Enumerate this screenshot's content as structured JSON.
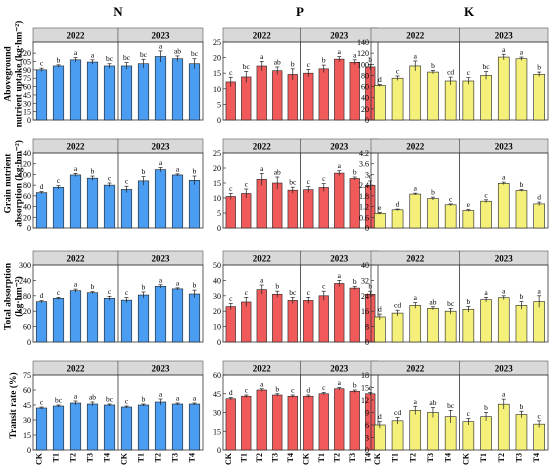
{
  "colors": {
    "N": "#4a9df0",
    "P": "#f05a5a",
    "K": "#f5f07a",
    "strip": "#d9d9d9"
  },
  "chart_data": {
    "type": "bar",
    "nutrients": [
      "N",
      "P",
      "K"
    ],
    "years": [
      "2022",
      "2023"
    ],
    "treatments": [
      "CK",
      "T1",
      "T2",
      "T3",
      "T4"
    ],
    "rows": [
      {
        "key": "aboveground",
        "ylabel": [
          "Aboveground",
          "nutrient uptake (kg·hm⁻²)"
        ],
        "panels": {
          "N": {
            "ylim": [
              0,
              140
            ],
            "ticks": [
              0,
              15,
              30,
              45,
              60,
              75,
              90,
              105,
              120
            ],
            "values": [
              [
                90,
                97,
                108,
                104,
                97
              ],
              [
                97,
                101,
                114,
                110,
                101
              ]
            ],
            "errors": [
              [
                3,
                2,
                4,
                4,
                4
              ],
              [
                6,
                8,
                10,
                5,
                9
              ]
            ],
            "letters": [
              [
                "c",
                "b",
                "a",
                "a",
                "bc"
              ],
              [
                "bc",
                "bc",
                "a",
                "ab",
                "bc"
              ]
            ]
          },
          "P": {
            "ylim": [
              0,
              25
            ],
            "ticks": [
              0,
              5,
              10,
              15,
              20,
              25
            ],
            "values": [
              [
                12.2,
                13.8,
                17.3,
                15.8,
                14.6
              ],
              [
                15.0,
                16.4,
                19.5,
                18.5,
                17.0
              ]
            ],
            "errors": [
              [
                1.5,
                1.8,
                1.5,
                1.2,
                1.8
              ],
              [
                1.2,
                1.2,
                0.8,
                0.8,
                0.8
              ]
            ],
            "letters": [
              [
                "c",
                "bc",
                "a",
                "ab",
                "b"
              ],
              [
                "c",
                "b",
                "a",
                "a",
                "b"
              ]
            ]
          },
          "K": {
            "ylim": [
              0,
              140
            ],
            "ticks": [
              0,
              20,
              40,
              60,
              80,
              100,
              120,
              140
            ],
            "values": [
              [
                62,
                75,
                97,
                86,
                70
              ],
              [
                70,
                80,
                113,
                110,
                82
              ]
            ],
            "errors": [
              [
                2,
                4,
                9,
                3,
                7
              ],
              [
                6,
                7,
                5,
                3,
                4
              ]
            ],
            "letters": [
              [
                "d",
                "c",
                "a",
                "b",
                "cd"
              ],
              [
                "c",
                "bc",
                "a",
                "a",
                "b"
              ]
            ]
          }
        }
      },
      {
        "key": "grain",
        "ylabel": [
          "Grain nutrient",
          "absorption (kg·hm⁻²)"
        ],
        "panels": {
          "N": {
            "ylim": [
              0,
              140
            ],
            "ticks": [
              0,
              20,
              40,
              60,
              80,
              100,
              120,
              140
            ],
            "values": [
              [
                66,
                76,
                99,
                93,
                80
              ],
              [
                72,
                88,
                109,
                99,
                89
              ]
            ],
            "errors": [
              [
                2,
                3,
                3,
                4,
                4
              ],
              [
                6,
                8,
                4,
                2,
                8
              ]
            ],
            "letters": [
              [
                "d",
                "c",
                "a",
                "b",
                "c"
              ],
              [
                "c",
                "b",
                "a",
                "a",
                "b"
              ]
            ]
          },
          "P": {
            "ylim": [
              0,
              25
            ],
            "ticks": [
              0,
              5,
              10,
              15,
              20,
              25
            ],
            "values": [
              [
                10.5,
                11.5,
                16.2,
                15.0,
                12.6
              ],
              [
                12.8,
                13.5,
                18.3,
                16.5,
                14.2
              ]
            ],
            "errors": [
              [
                1.0,
                1.5,
                2.0,
                2.0,
                1.0
              ],
              [
                1.0,
                1.3,
                0.8,
                0.5,
                1.5
              ]
            ],
            "letters": [
              [
                "c",
                "c",
                "a",
                "ab",
                "bc"
              ],
              [
                "c",
                "c",
                "a",
                "b",
                "c"
              ]
            ]
          },
          "K": {
            "ylim": [
              0,
              4.2
            ],
            "ticks": [
              0,
              0.6,
              1.2,
              1.8,
              2.4,
              3.0,
              3.6,
              4.2
            ],
            "values": [
              [
                0.82,
                1.02,
                1.9,
                1.65,
                1.3
              ],
              [
                0.98,
                1.5,
                2.5,
                2.1,
                1.35
              ]
            ],
            "errors": [
              [
                0.05,
                0.04,
                0.05,
                0.08,
                0.05
              ],
              [
                0.05,
                0.08,
                0.07,
                0.05,
                0.1
              ]
            ],
            "letters": [
              [
                "e",
                "d",
                "a",
                "b",
                "c"
              ],
              [
                "e",
                "c",
                "a",
                "b",
                "d"
              ]
            ]
          }
        }
      },
      {
        "key": "total",
        "ylabel": [
          "Total absorption",
          "(kg·hm⁻²)"
        ],
        "panels": {
          "N": {
            "ylim": [
              0,
              300
            ],
            "ticks": [
              0,
              60,
              120,
              180,
              240,
              300
            ],
            "values": [
              [
                157,
                170,
                200,
                192,
                170
              ],
              [
                163,
                183,
                217,
                207,
                187
              ]
            ],
            "errors": [
              [
                4,
                4,
                6,
                4,
                8
              ],
              [
                10,
                12,
                6,
                4,
                15
              ]
            ],
            "letters": [
              [
                "d",
                "c",
                "a",
                "b",
                "c"
              ],
              [
                "c",
                "b",
                "a",
                "a",
                "b"
              ]
            ]
          },
          "P": {
            "ylim": [
              0,
              50
            ],
            "ticks": [
              0,
              10,
              20,
              30,
              40,
              50
            ],
            "values": [
              [
                23,
                26,
                34,
                31,
                27
              ],
              [
                27,
                30,
                38,
                35,
                31
              ]
            ],
            "errors": [
              [
                2,
                3,
                3,
                2,
                2
              ],
              [
                2,
                3,
                2,
                1,
                2
              ]
            ],
            "letters": [
              [
                "c",
                "c",
                "a",
                "b",
                "bc"
              ],
              [
                "c",
                "c",
                "a",
                "b",
                "b"
              ]
            ]
          },
          "K": {
            "ylim": [
              0,
              40
            ],
            "ticks": [
              0,
              8,
              16,
              24,
              32,
              40
            ],
            "values": [
              [
                13,
                15,
                19,
                17.5,
                16
              ],
              [
                17,
                22,
                23,
                19,
                21
              ]
            ],
            "errors": [
              [
                1.5,
                1.5,
                1.5,
                0.8,
                1.5
              ],
              [
                1.5,
                1.2,
                1.0,
                2.0,
                3.0
              ]
            ],
            "letters": [
              [
                "d",
                "cd",
                "a",
                "ab",
                "bc"
              ],
              [
                "b",
                "a",
                "a",
                "b",
                "a"
              ]
            ]
          }
        }
      },
      {
        "key": "transit",
        "ylabel": [
          "Transit rate (%)"
        ],
        "panels": {
          "N": {
            "ylim": [
              0,
              75
            ],
            "ticks": [
              0,
              15,
              30,
              45,
              60,
              75
            ],
            "values": [
              [
                42,
                44,
                47,
                46,
                45
              ],
              [
                43,
                45,
                48,
                46,
                46
              ]
            ],
            "errors": [
              [
                1,
                1,
                2,
                2,
                1
              ],
              [
                1,
                1,
                3,
                1,
                1
              ]
            ],
            "letters": [
              [
                "c",
                "bc",
                "a",
                "ab",
                "bc"
              ],
              [
                "c",
                "b",
                "a",
                "a",
                "a"
              ]
            ]
          },
          "P": {
            "ylim": [
              0,
              60
            ],
            "ticks": [
              0,
              15,
              30,
              45,
              60
            ],
            "values": [
              [
                41,
                43,
                48,
                44,
                43
              ],
              [
                43,
                45,
                49,
                47,
                45
              ]
            ],
            "errors": [
              [
                1,
                1,
                1,
                1,
                1
              ],
              [
                1,
                1,
                1,
                1,
                1
              ]
            ],
            "letters": [
              [
                "d",
                "c",
                "a",
                "b",
                "c"
              ],
              [
                "d",
                "c",
                "a",
                "b",
                "c"
              ]
            ]
          },
          "K": {
            "ylim": [
              0,
              18
            ],
            "ticks": [
              0,
              3,
              6,
              9,
              12,
              15,
              18
            ],
            "values": [
              [
                6,
                7,
                9.5,
                9,
                8
              ],
              [
                6.8,
                8,
                11,
                8.5,
                6.2
              ]
            ],
            "errors": [
              [
                0.8,
                0.8,
                1,
                1.2,
                1.5
              ],
              [
                0.8,
                1,
                1.2,
                0.8,
                0.8
              ]
            ],
            "letters": [
              [
                "d",
                "cd",
                "a",
                "ab",
                "bc"
              ],
              [
                "c",
                "b",
                "a",
                "b",
                "c"
              ]
            ]
          }
        }
      }
    ]
  }
}
